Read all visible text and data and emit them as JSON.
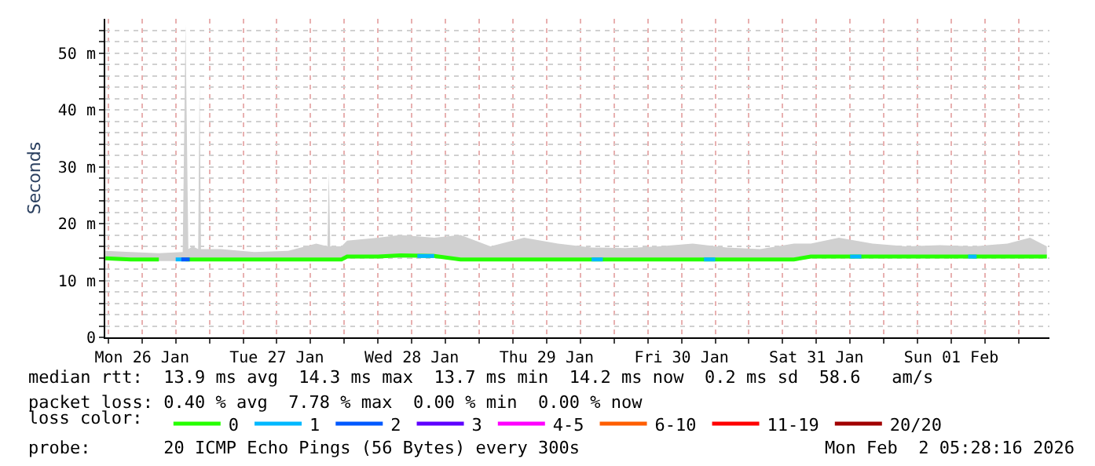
{
  "chart_data": {
    "type": "line",
    "ylabel": "Seconds",
    "legend_title": "loss color:",
    "legend": "bottom",
    "grid": true,
    "marker": "none",
    "line_style": "solid",
    "xlim": [
      "2026-01-26T05:28",
      "2026-02-02T05:28"
    ],
    "xticks": [
      {
        "value": "2026-01-26T06:00",
        "label": null
      },
      {
        "value": "2026-01-26T12:00",
        "label": "Mon 26 Jan"
      },
      {
        "value": "2026-01-26T18:00",
        "label": null
      },
      {
        "value": "2026-01-27T00:00",
        "label": null
      },
      {
        "value": "2026-01-27T06:00",
        "label": null
      },
      {
        "value": "2026-01-27T12:00",
        "label": "Tue 27 Jan"
      },
      {
        "value": "2026-01-27T18:00",
        "label": null
      },
      {
        "value": "2026-01-28T00:00",
        "label": null
      },
      {
        "value": "2026-01-28T06:00",
        "label": null
      },
      {
        "value": "2026-01-28T12:00",
        "label": "Wed 28 Jan"
      },
      {
        "value": "2026-01-28T18:00",
        "label": null
      },
      {
        "value": "2026-01-29T00:00",
        "label": null
      },
      {
        "value": "2026-01-29T06:00",
        "label": null
      },
      {
        "value": "2026-01-29T12:00",
        "label": "Thu 29 Jan"
      },
      {
        "value": "2026-01-29T18:00",
        "label": null
      },
      {
        "value": "2026-01-30T00:00",
        "label": null
      },
      {
        "value": "2026-01-30T06:00",
        "label": null
      },
      {
        "value": "2026-01-30T12:00",
        "label": "Fri 30 Jan"
      },
      {
        "value": "2026-01-30T18:00",
        "label": null
      },
      {
        "value": "2026-01-31T00:00",
        "label": null
      },
      {
        "value": "2026-01-31T06:00",
        "label": null
      },
      {
        "value": "2026-01-31T12:00",
        "label": "Sat 31 Jan"
      },
      {
        "value": "2026-01-31T18:00",
        "label": null
      },
      {
        "value": "2026-02-01T00:00",
        "label": null
      },
      {
        "value": "2026-02-01T06:00",
        "label": null
      },
      {
        "value": "2026-02-01T12:00",
        "label": "Sun 01 Feb"
      },
      {
        "value": "2026-02-01T18:00",
        "label": null
      },
      {
        "value": "2026-02-02T00:00",
        "label": null
      }
    ],
    "ylim": [
      0,
      56
    ],
    "yticks": [
      0,
      {
        "value": 2,
        "label": null
      },
      {
        "value": 4,
        "label": null
      },
      {
        "value": 6,
        "label": null
      },
      {
        "value": 8,
        "label": null
      },
      {
        "value": 10,
        "label": "10 m"
      },
      {
        "value": 12,
        "label": null
      },
      {
        "value": 14,
        "label": null
      },
      {
        "value": 16,
        "label": null
      },
      {
        "value": 18,
        "label": null
      },
      {
        "value": 20,
        "label": "20 m"
      },
      {
        "value": 22,
        "label": null
      },
      {
        "value": 24,
        "label": null
      },
      {
        "value": 26,
        "label": null
      },
      {
        "value": 28,
        "label": null
      },
      {
        "value": 30,
        "label": "30 m"
      },
      {
        "value": 32,
        "label": null
      },
      {
        "value": 34,
        "label": null
      },
      {
        "value": 36,
        "label": null
      },
      {
        "value": 38,
        "label": null
      },
      {
        "value": 40,
        "label": "40 m"
      },
      {
        "value": 42,
        "label": null
      },
      {
        "value": 44,
        "label": null
      },
      {
        "value": 46,
        "label": null
      },
      {
        "value": 48,
        "label": null
      },
      {
        "value": 50,
        "label": "50 m"
      },
      {
        "value": 52,
        "label": null
      },
      {
        "value": 54,
        "label": null
      }
    ],
    "series": [
      {
        "name": "0",
        "color": "#26ff00",
        "x": [
          "2026-01-26T05:30",
          "2026-01-26T10:00",
          "2026-01-26T15:00",
          "2026-01-26T19:15",
          "2026-01-26T19:45",
          "2026-01-26T20:15",
          "2026-01-26T21:00",
          "2026-01-26T22:00",
          "2026-01-26T22:15",
          "2026-01-26T22:30",
          "2026-01-27T02:00",
          "2026-01-27T08:00",
          "2026-01-27T14:00",
          "2026-01-27T19:00",
          "2026-01-27T21:00",
          "2026-01-27T21:15",
          "2026-01-27T21:30",
          "2026-01-27T23:30",
          "2026-01-28T00:30",
          "2026-01-28T06:00",
          "2026-01-28T10:00",
          "2026-01-28T16:00",
          "2026-01-28T20:40",
          "2026-01-29T02:00",
          "2026-01-29T08:00",
          "2026-01-29T14:00",
          "2026-01-29T20:00",
          "2026-01-30T02:00",
          "2026-01-30T08:00",
          "2026-01-30T14:00",
          "2026-01-30T20:00",
          "2026-01-31T02:00",
          "2026-01-31T08:00",
          "2026-01-31T11:00",
          "2026-01-31T16:00",
          "2026-01-31T22:00",
          "2026-02-01T04:00",
          "2026-02-01T10:00",
          "2026-02-01T16:00",
          "2026-02-01T22:00",
          "2026-02-02T02:00",
          "2026-02-02T05:00"
        ],
        "values": [
          13.9,
          13.7,
          13.7,
          null,
          13.7,
          13.7,
          13.7,
          13.7,
          13.7,
          13.7,
          13.7,
          13.7,
          13.7,
          13.7,
          13.7,
          13.7,
          13.7,
          13.7,
          14.2,
          14.2,
          14.4,
          14.3,
          13.7,
          13.7,
          13.7,
          13.7,
          13.7,
          13.7,
          13.7,
          13.7,
          13.7,
          13.7,
          13.7,
          14.2,
          14.2,
          14.2,
          14.2,
          14.2,
          14.2,
          14.2,
          14.2,
          14.2
        ],
        "lower": [
          13.5,
          13.4,
          13.4,
          13.4,
          13.4,
          13.4,
          13.4,
          13.4,
          13.4,
          13.4,
          13.4,
          13.4,
          13.4,
          13.4,
          13.4,
          13.4,
          13.4,
          13.4,
          13.9,
          13.9,
          14,
          14,
          13.4,
          13.4,
          13.4,
          13.4,
          13.4,
          13.4,
          13.4,
          13.4,
          13.4,
          13.4,
          13.4,
          13.9,
          13.9,
          13.9,
          13.9,
          13.9,
          13.9,
          13.9,
          13.9,
          13.9
        ],
        "upper": [
          15.2,
          15,
          14.8,
          15,
          55,
          15.5,
          16,
          15.5,
          45,
          15.5,
          15.5,
          15,
          15.2,
          16.5,
          16,
          29,
          16,
          16,
          17,
          17.5,
          18,
          17.5,
          18,
          16,
          17.5,
          16.5,
          15.8,
          15.7,
          16,
          16.5,
          15.8,
          15.5,
          16.5,
          16.5,
          17.5,
          16.5,
          16,
          16.2,
          16,
          16.5,
          17.5,
          16
        ]
      },
      {
        "name": "1",
        "color": "#00b8ff",
        "x": [
          "2026-01-26T18:00",
          "2026-01-26T19:45",
          "2026-01-27T00:00",
          "2026-01-28T13:00",
          "2026-01-28T16:00",
          "2026-01-29T00:00",
          "2026-01-29T20:00",
          "2026-01-29T22:00",
          "2026-01-30T00:00",
          "2026-01-30T16:00",
          "2026-01-30T18:00",
          "2026-01-31T00:00",
          "2026-01-31T18:00",
          "2026-01-31T20:00",
          "2026-02-01T00:00",
          "2026-02-01T15:00",
          "2026-02-01T16:30"
        ],
        "values": [
          13.7,
          13.7,
          null,
          14.3,
          14.3,
          null,
          13.7,
          13.7,
          null,
          13.7,
          13.7,
          null,
          14.2,
          14.2,
          null,
          14.2,
          14.2
        ]
      },
      {
        "name": "2",
        "color": "#0059ff",
        "x": [
          "2026-01-26T19:00",
          "2026-01-26T20:30"
        ],
        "values": [
          13.7,
          13.7
        ]
      },
      {
        "name": "3",
        "color": "#5e00ff"
      },
      {
        "name": "4-5",
        "color": "#ff00ff"
      },
      {
        "name": "6-10",
        "color": "#ff5e00"
      },
      {
        "name": "11-19",
        "color": "#ff0000"
      },
      {
        "name": "20/20",
        "color": "#a10000"
      }
    ],
    "annotations": [
      "median rtt:  13.9 ms avg  14.3 ms max  13.7 ms min  14.2 ms now  0.2 ms sd  58.6   am/s",
      "packet loss: 0.40 % avg  7.78 % max  0.00 % min  0.00 % now",
      "probe:       20 ICMP Echo Pings (56 Bytes) every 300s",
      "Mon Feb  2 05:28:16 2026"
    ]
  }
}
